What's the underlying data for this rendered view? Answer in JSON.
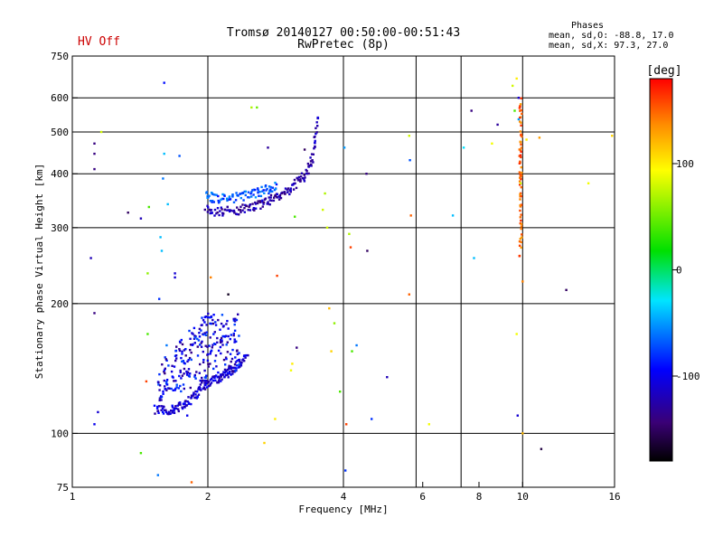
{
  "header": {
    "title_line1": "Tromsø 20140127 00:50:00-00:51:43",
    "title_line2": "RwPretec (8p)",
    "status": "HV Off",
    "status_color": "#cc0000",
    "phases_title": "Phases",
    "phases_o": "mean, sd,O: -88.8, 17.0",
    "phases_x": "mean, sd,X:  97.3, 27.0"
  },
  "colorbar": {
    "label": "[deg]",
    "range": [
      -180,
      180
    ],
    "ticks": [
      {
        "value": 100,
        "label": "100"
      },
      {
        "value": 0,
        "label": "0"
      },
      {
        "value": -100,
        "label": "-100"
      }
    ]
  },
  "chart_data": {
    "type": "scatter",
    "xlabel": "Frequency [MHz]",
    "ylabel": "Stationary phase Virtual Height [km]",
    "xscale": "log",
    "yscale": "log",
    "xlim": [
      1,
      16
    ],
    "ylim": [
      75,
      750
    ],
    "xticks": [
      {
        "value": 1,
        "label": "1"
      },
      {
        "value": 2,
        "label": "2"
      },
      {
        "value": 4,
        "label": "4"
      },
      {
        "value": 6,
        "label": "6"
      },
      {
        "value": 8,
        "label": "8"
      },
      {
        "value": 10,
        "label": "10"
      },
      {
        "value": 16,
        "label": "16"
      }
    ],
    "yticks": [
      {
        "value": 75,
        "label": "75"
      },
      {
        "value": 100,
        "label": "100"
      },
      {
        "value": 200,
        "label": "200"
      },
      {
        "value": 300,
        "label": "300"
      },
      {
        "value": 400,
        "label": "400"
      },
      {
        "value": 500,
        "label": "500"
      },
      {
        "value": 600,
        "label": "600"
      },
      {
        "value": 750,
        "label": "750"
      }
    ],
    "vgrid": [
      2,
      4,
      5.8,
      7.3,
      10
    ],
    "hgrid": [
      100,
      200,
      300,
      400,
      500,
      600
    ],
    "traces": [
      {
        "name": "E-layer trace",
        "f": [
          1.53,
          1.58,
          1.63,
          1.68,
          1.73,
          1.78,
          1.83,
          1.88,
          1.93,
          1.98,
          2.03,
          2.08,
          2.13,
          2.18,
          2.23,
          2.28,
          2.33,
          2.38,
          2.45
        ],
        "h": [
          114,
          113,
          113,
          114,
          115,
          117,
          120,
          123,
          127,
          130,
          132,
          133,
          135,
          137,
          139,
          141,
          144,
          147,
          151
        ],
        "phase": -110
      },
      {
        "name": "F-layer trace",
        "f": [
          1.98,
          2.05,
          2.15,
          2.25,
          2.35,
          2.45,
          2.55,
          2.65,
          2.75,
          2.85,
          2.95,
          3.05,
          3.15,
          3.25,
          3.35,
          3.42,
          3.47,
          3.5
        ],
        "h": [
          330,
          328,
          327,
          328,
          330,
          333,
          337,
          342,
          348,
          355,
          362,
          370,
          380,
          392,
          410,
          435,
          480,
          560
        ],
        "phase": -125
      },
      {
        "name": "X-mode trace",
        "f": [
          1.98,
          2.05,
          2.15,
          2.25,
          2.35,
          2.45,
          2.55,
          2.65,
          2.75,
          2.85
        ],
        "h": [
          355,
          352,
          350,
          351,
          353,
          356,
          360,
          365,
          370,
          376
        ],
        "phase": -70
      },
      {
        "name": "10 MHz interference",
        "f": [
          9.9,
          9.9,
          9.9,
          9.9,
          9.9,
          9.9,
          9.9,
          9.9
        ],
        "h": [
          260,
          300,
          340,
          380,
          420,
          470,
          530,
          600
        ],
        "phase": 150
      }
    ],
    "clusters": [
      {
        "name": "E-layer cluster",
        "f_range": [
          1.55,
          2.35
        ],
        "h_range": [
          118,
          190
        ],
        "count": 260,
        "phase": -105
      }
    ],
    "scatter_points": [
      {
        "f": 1.12,
        "h": 445,
        "phase": -140
      },
      {
        "f": 1.12,
        "h": 410,
        "phase": -140
      },
      {
        "f": 1.12,
        "h": 470,
        "phase": -140
      },
      {
        "f": 1.1,
        "h": 255,
        "phase": -120
      },
      {
        "f": 1.12,
        "h": 190,
        "phase": -140
      },
      {
        "f": 1.14,
        "h": 112,
        "phase": -110
      },
      {
        "f": 1.16,
        "h": 500,
        "phase": 80
      },
      {
        "f": 1.12,
        "h": 105,
        "phase": -100
      },
      {
        "f": 1.33,
        "h": 325,
        "phase": -150
      },
      {
        "f": 1.42,
        "h": 315,
        "phase": -120
      },
      {
        "f": 1.48,
        "h": 335,
        "phase": 40
      },
      {
        "f": 1.47,
        "h": 235,
        "phase": 60
      },
      {
        "f": 1.47,
        "h": 170,
        "phase": 40
      },
      {
        "f": 1.46,
        "h": 132,
        "phase": 160
      },
      {
        "f": 1.42,
        "h": 90,
        "phase": 40
      },
      {
        "f": 1.55,
        "h": 80,
        "phase": -60
      },
      {
        "f": 1.6,
        "h": 650,
        "phase": -90
      },
      {
        "f": 1.6,
        "h": 445,
        "phase": -40
      },
      {
        "f": 1.63,
        "h": 340,
        "phase": -40
      },
      {
        "f": 1.59,
        "h": 390,
        "phase": -60
      },
      {
        "f": 1.57,
        "h": 285,
        "phase": -40
      },
      {
        "f": 1.58,
        "h": 265,
        "phase": -40
      },
      {
        "f": 1.56,
        "h": 205,
        "phase": -80
      },
      {
        "f": 1.73,
        "h": 440,
        "phase": -70
      },
      {
        "f": 1.69,
        "h": 235,
        "phase": -110
      },
      {
        "f": 1.69,
        "h": 230,
        "phase": -110
      },
      {
        "f": 1.84,
        "h": 77,
        "phase": 150
      },
      {
        "f": 2.03,
        "h": 230,
        "phase": 140
      },
      {
        "f": 2.22,
        "h": 210,
        "phase": -170
      },
      {
        "f": 2.5,
        "h": 570,
        "phase": 70
      },
      {
        "f": 2.57,
        "h": 570,
        "phase": 50
      },
      {
        "f": 2.72,
        "h": 460,
        "phase": -130
      },
      {
        "f": 2.67,
        "h": 95,
        "phase": 110
      },
      {
        "f": 2.82,
        "h": 108,
        "phase": 100
      },
      {
        "f": 2.85,
        "h": 232,
        "phase": 160
      },
      {
        "f": 3.06,
        "h": 140,
        "phase": 90
      },
      {
        "f": 3.08,
        "h": 145,
        "phase": 100
      },
      {
        "f": 3.12,
        "h": 318,
        "phase": 40
      },
      {
        "f": 3.15,
        "h": 158,
        "phase": -140
      },
      {
        "f": 3.28,
        "h": 455,
        "phase": -150
      },
      {
        "f": 3.6,
        "h": 330,
        "phase": 80
      },
      {
        "f": 3.64,
        "h": 360,
        "phase": 70
      },
      {
        "f": 3.68,
        "h": 300,
        "phase": 80
      },
      {
        "f": 3.72,
        "h": 195,
        "phase": 120
      },
      {
        "f": 3.76,
        "h": 155,
        "phase": 110
      },
      {
        "f": 3.82,
        "h": 180,
        "phase": 60
      },
      {
        "f": 3.93,
        "h": 125,
        "phase": 40
      },
      {
        "f": 4.02,
        "h": 460,
        "phase": -50
      },
      {
        "f": 4.04,
        "h": 82,
        "phase": -80
      },
      {
        "f": 4.06,
        "h": 105,
        "phase": 160
      },
      {
        "f": 4.12,
        "h": 290,
        "phase": 70
      },
      {
        "f": 4.15,
        "h": 270,
        "phase": 160
      },
      {
        "f": 4.18,
        "h": 155,
        "phase": 40
      },
      {
        "f": 4.28,
        "h": 160,
        "phase": -60
      },
      {
        "f": 4.5,
        "h": 400,
        "phase": -140
      },
      {
        "f": 4.52,
        "h": 265,
        "phase": -150
      },
      {
        "f": 4.62,
        "h": 108,
        "phase": -80
      },
      {
        "f": 5.0,
        "h": 135,
        "phase": -120
      },
      {
        "f": 5.6,
        "h": 490,
        "phase": 80
      },
      {
        "f": 5.62,
        "h": 430,
        "phase": -70
      },
      {
        "f": 5.65,
        "h": 320,
        "phase": 150
      },
      {
        "f": 5.6,
        "h": 210,
        "phase": 150
      },
      {
        "f": 6.2,
        "h": 105,
        "phase": 90
      },
      {
        "f": 7.0,
        "h": 320,
        "phase": -40
      },
      {
        "f": 7.4,
        "h": 460,
        "phase": -30
      },
      {
        "f": 7.7,
        "h": 560,
        "phase": -140
      },
      {
        "f": 7.8,
        "h": 255,
        "phase": -40
      },
      {
        "f": 8.55,
        "h": 470,
        "phase": 90
      },
      {
        "f": 8.8,
        "h": 520,
        "phase": -130
      },
      {
        "f": 9.5,
        "h": 640,
        "phase": 80
      },
      {
        "f": 9.6,
        "h": 560,
        "phase": 40
      },
      {
        "f": 9.7,
        "h": 665,
        "phase": 100
      },
      {
        "f": 9.8,
        "h": 600,
        "phase": -110
      },
      {
        "f": 9.8,
        "h": 535,
        "phase": -50
      },
      {
        "f": 9.7,
        "h": 170,
        "phase": 90
      },
      {
        "f": 9.75,
        "h": 110,
        "phase": -110
      },
      {
        "f": 10.0,
        "h": 100,
        "phase": 120
      },
      {
        "f": 9.9,
        "h": 380,
        "phase": 80
      },
      {
        "f": 10.0,
        "h": 225,
        "phase": 140
      },
      {
        "f": 10.2,
        "h": 480,
        "phase": 100
      },
      {
        "f": 10.9,
        "h": 485,
        "phase": 130
      },
      {
        "f": 11.0,
        "h": 92,
        "phase": -160
      },
      {
        "f": 12.5,
        "h": 215,
        "phase": -150
      },
      {
        "f": 14.0,
        "h": 380,
        "phase": 90
      },
      {
        "f": 15.8,
        "h": 490,
        "phase": 110
      },
      {
        "f": 1.62,
        "h": 160,
        "phase": -60
      },
      {
        "f": 1.8,
        "h": 110,
        "phase": -100
      }
    ]
  }
}
